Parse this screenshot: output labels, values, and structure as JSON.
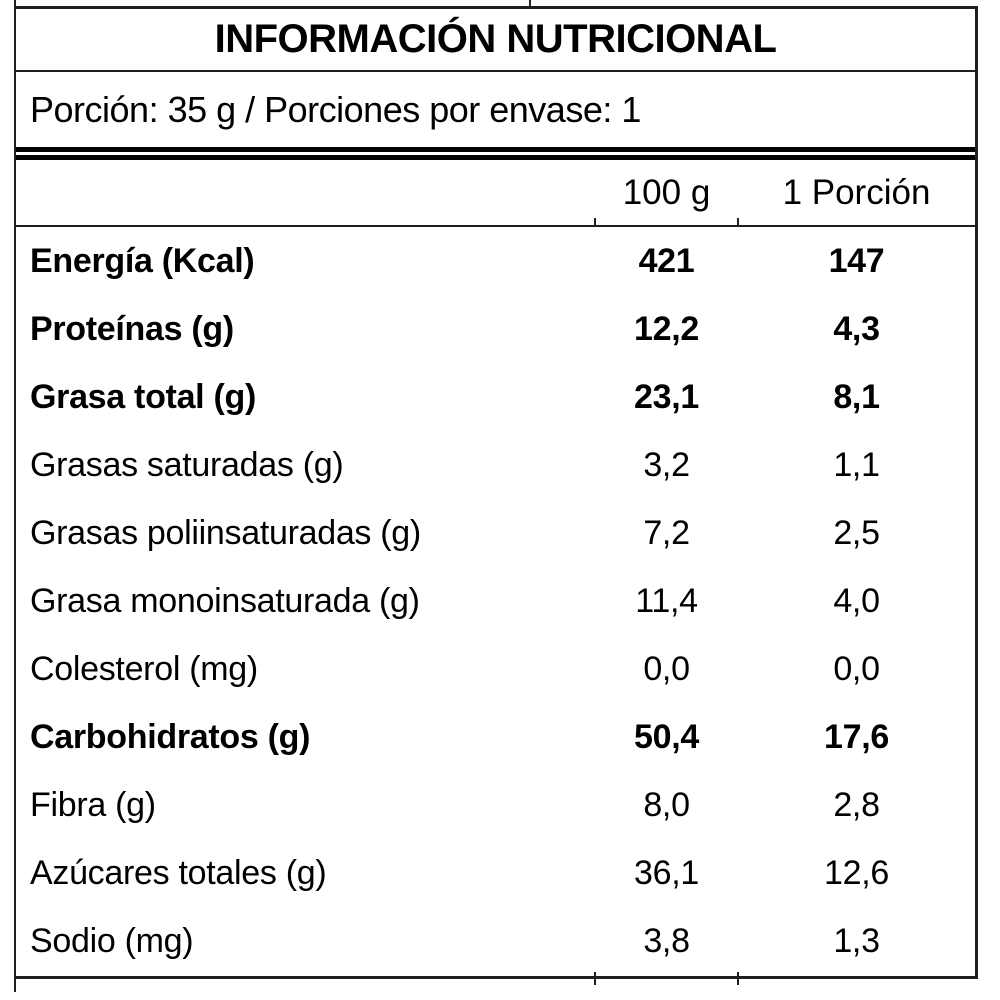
{
  "nutrition_label": {
    "title": "INFORMACIÓN NUTRICIONAL",
    "serving_info": "Porción: 35 g / Porciones por envase: 1",
    "serving_size": "35 g",
    "servings_per_container": "1",
    "column_headers": {
      "per_100g": "100 g",
      "per_portion": "1 Porción"
    },
    "rows": [
      {
        "name": "Energía (Kcal)",
        "per_100g": "421",
        "per_portion": "147",
        "bold": true
      },
      {
        "name": "Proteínas (g)",
        "per_100g": "12,2",
        "per_portion": "4,3",
        "bold": true
      },
      {
        "name": "Grasa total (g)",
        "per_100g": "23,1",
        "per_portion": "8,1",
        "bold": true
      },
      {
        "name": "Grasas saturadas (g)",
        "per_100g": "3,2",
        "per_portion": "1,1",
        "bold": false
      },
      {
        "name": "Grasas poliinsaturadas (g)",
        "per_100g": "7,2",
        "per_portion": "2,5",
        "bold": false
      },
      {
        "name": "Grasa monoinsaturada (g)",
        "per_100g": "11,4",
        "per_portion": "4,0",
        "bold": false
      },
      {
        "name": "Colesterol (mg)",
        "per_100g": "0,0",
        "per_portion": "0,0",
        "bold": false
      },
      {
        "name": "Carbohidratos (g)",
        "per_100g": "50,4",
        "per_portion": "17,6",
        "bold": true
      },
      {
        "name": "Fibra (g)",
        "per_100g": "8,0",
        "per_portion": "2,8",
        "bold": false
      },
      {
        "name": "Azúcares totales (g)",
        "per_100g": "36,1",
        "per_portion": "12,6",
        "bold": false
      },
      {
        "name": "Sodio (mg)",
        "per_100g": "3,8",
        "per_portion": "1,3",
        "bold": false
      }
    ],
    "colors": {
      "text": "#000000",
      "border": "#1f1f1f",
      "double_rule": "#000000",
      "background": "#ffffff"
    }
  }
}
